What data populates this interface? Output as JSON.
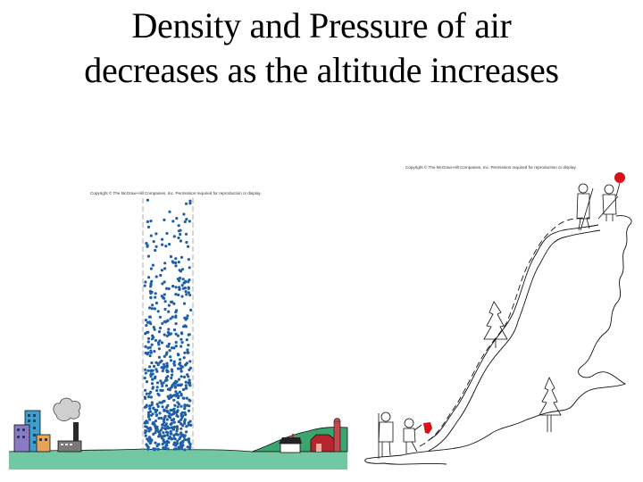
{
  "slide": {
    "title_line1": "Density and Pressure  of air",
    "title_line2": "decreases as the altitude increases"
  },
  "left_figure": {
    "name": "air-column-diagram",
    "copyright": "Copyright © The McGraw-Hill Companies, Inc. Permission required for reproduction or display.",
    "elements": [
      "city-buildings",
      "factory-with-smoke",
      "air-column-dots",
      "ground",
      "hill",
      "house",
      "barn",
      "silo"
    ],
    "colors": {
      "ground": "#72c8a3",
      "hill": "#3aa56e",
      "dots": "#1e5fa8",
      "barn": "#b5262c",
      "smoke": "#cfcfcf"
    }
  },
  "right_figure": {
    "name": "mountain-climbers-diagram",
    "copyright": "Copyright © The McGraw-Hill Companies, Inc. Permission required for reproduction or display.",
    "elements": [
      "mountain-outline",
      "trail",
      "tree-upper",
      "tree-lower",
      "climbers-bottom",
      "climbers-top",
      "balloon-bottom",
      "balloon-top"
    ],
    "colors": {
      "balloon": "#d8121a",
      "line": "#000000"
    }
  }
}
